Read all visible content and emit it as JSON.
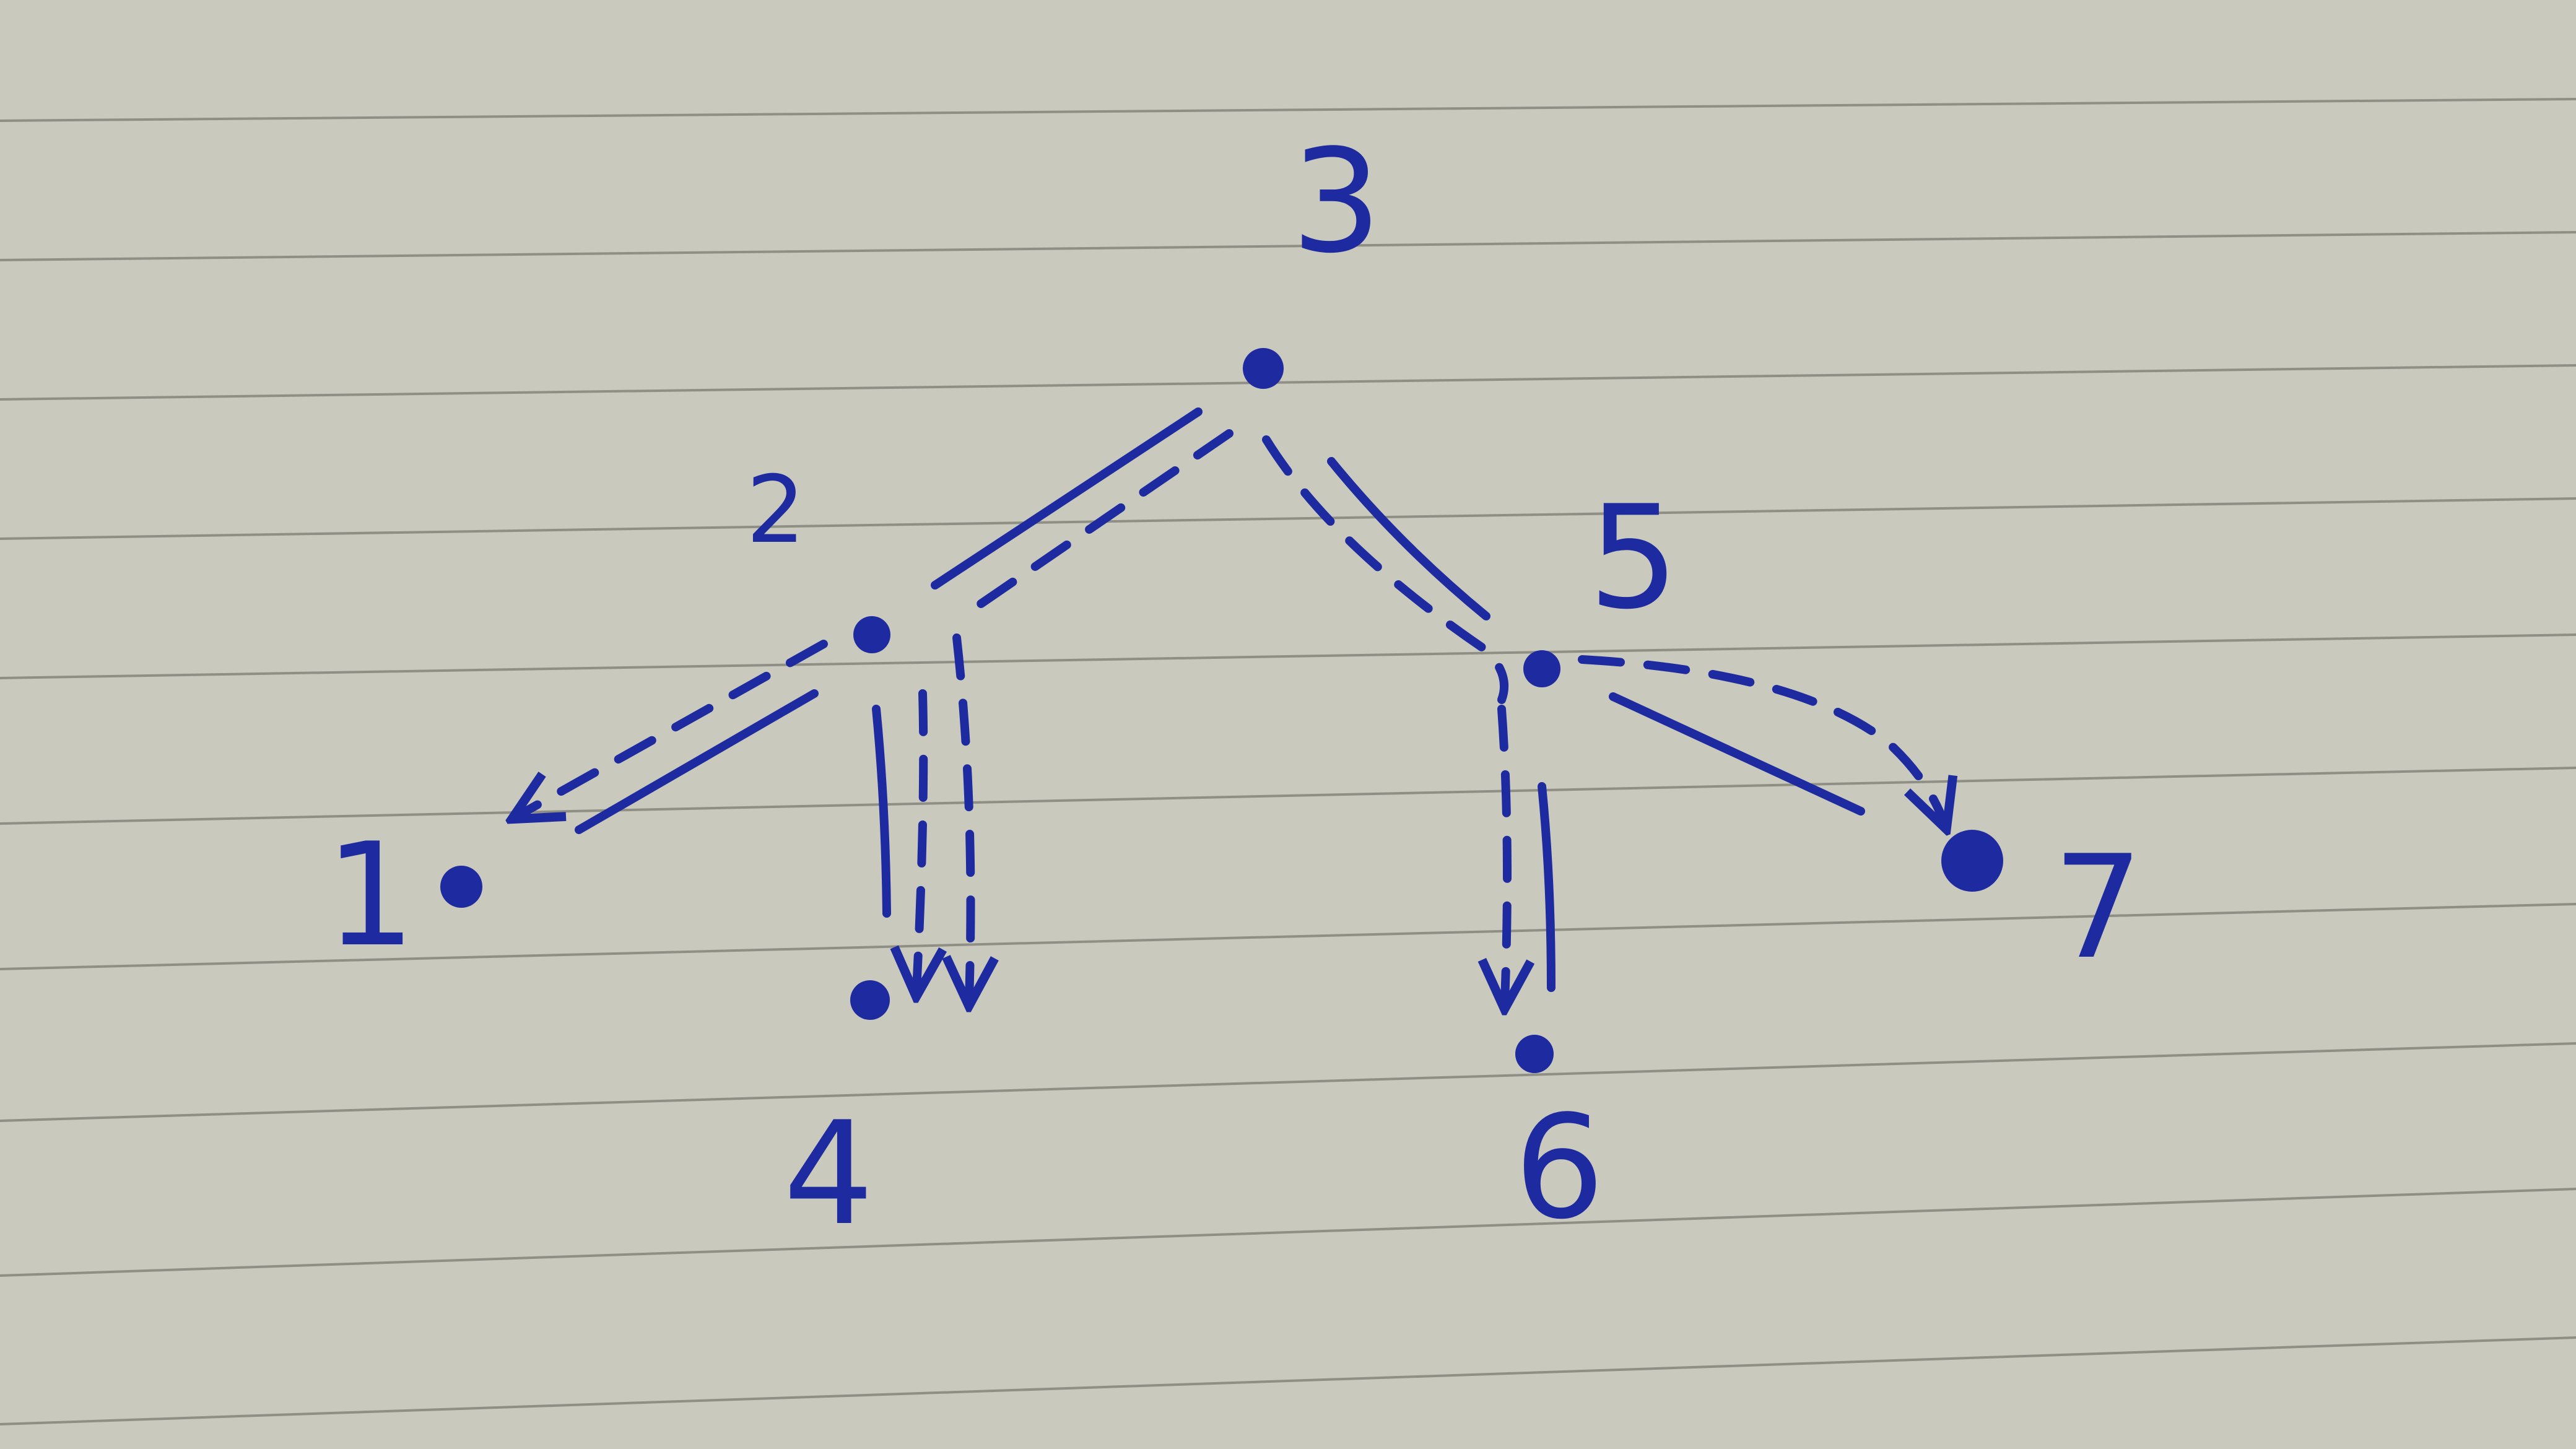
{
  "diagram": {
    "nodes": [
      {
        "id": "3",
        "label": "3"
      },
      {
        "id": "2",
        "label": "2"
      },
      {
        "id": "5",
        "label": "5"
      },
      {
        "id": "1",
        "label": "1"
      },
      {
        "id": "4",
        "label": "4"
      },
      {
        "id": "6",
        "label": "6"
      },
      {
        "id": "7",
        "label": "7"
      }
    ],
    "edges": [
      {
        "from": "3",
        "to": "2",
        "style": "solid"
      },
      {
        "from": "3",
        "to": "2",
        "style": "dashed"
      },
      {
        "from": "3",
        "to": "5",
        "style": "solid"
      },
      {
        "from": "3",
        "to": "5",
        "style": "dashed"
      },
      {
        "from": "2",
        "to": "1",
        "style": "solid"
      },
      {
        "from": "2",
        "to": "1",
        "style": "dashed-arrow"
      },
      {
        "from": "2",
        "to": "4",
        "style": "solid"
      },
      {
        "from": "2",
        "to": "4",
        "style": "dashed-arrow"
      },
      {
        "from": "2",
        "to": "4",
        "style": "dashed-arrow"
      },
      {
        "from": "5",
        "to": "6",
        "style": "solid"
      },
      {
        "from": "5",
        "to": "6",
        "style": "dashed-arrow"
      },
      {
        "from": "5",
        "to": "7",
        "style": "solid"
      },
      {
        "from": "5",
        "to": "7",
        "style": "dashed-arrow"
      }
    ],
    "colors": {
      "ink": "#1e2aa0",
      "paper": "#c9c9bd",
      "rule_lines": "#8f8f86"
    }
  }
}
